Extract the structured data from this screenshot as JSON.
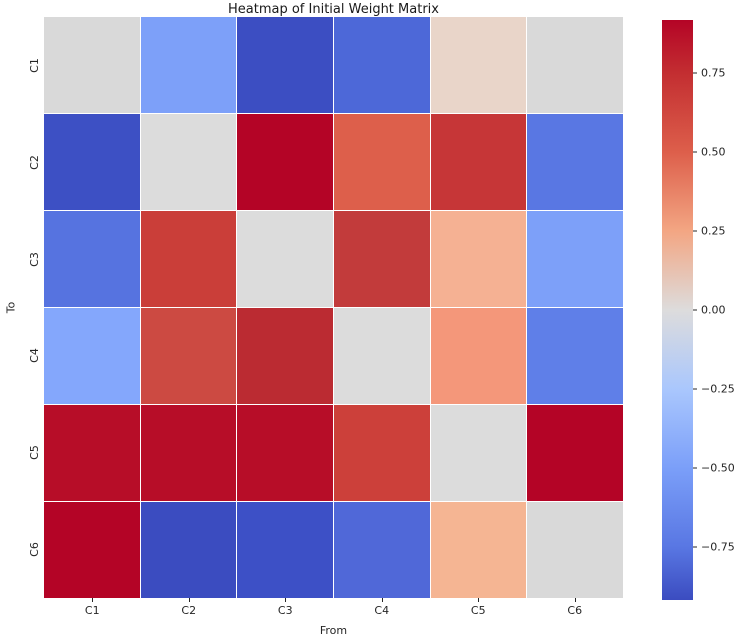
{
  "chart_data": {
    "type": "heatmap",
    "title": "Heatmap of Initial Weight Matrix",
    "xlabel": "From",
    "ylabel": "To",
    "x_categories": [
      "C1",
      "C2",
      "C3",
      "C4",
      "C5",
      "C6"
    ],
    "y_categories": [
      "C1",
      "C2",
      "C3",
      "C4",
      "C5",
      "C6"
    ],
    "colormap": "coolwarm",
    "value_range": [
      -0.92,
      0.92
    ],
    "grid": false,
    "legend_position": "right-colorbar",
    "values": [
      [
        0.0,
        -0.38,
        -0.85,
        -0.68,
        0.1,
        0.02
      ],
      [
        -0.84,
        0.0,
        0.92,
        0.55,
        0.65,
        -0.52
      ],
      [
        -0.6,
        0.62,
        0.0,
        0.68,
        0.3,
        -0.4
      ],
      [
        -0.35,
        0.62,
        0.75,
        0.0,
        0.42,
        -0.5
      ],
      [
        0.88,
        0.88,
        0.88,
        0.65,
        0.0,
        0.92
      ],
      [
        0.92,
        -0.88,
        -0.82,
        -0.62,
        0.3,
        0.02
      ]
    ],
    "cell_colors": [
      [
        "#d9d9d9",
        "#7da0f9",
        "#3c4ec2",
        "#4d68d8",
        "#e9d5c9",
        "#d9d9d9"
      ],
      [
        "#3d50c4",
        "#dcdcdc",
        "#b40426",
        "#dd5f4b",
        "#c63637",
        "#5977e3"
      ],
      [
        "#5673e0",
        "#ca3e39",
        "#dcdcdc",
        "#c23b3b",
        "#f5b193",
        "#7da0f9"
      ],
      [
        "#84a7fc",
        "#cc4a42",
        "#bb2b32",
        "#dcdcdc",
        "#f4977a",
        "#5f7fe8"
      ],
      [
        "#b70d28",
        "#b70d28",
        "#b70d28",
        "#cc403a",
        "#dcdcdc",
        "#b40426"
      ],
      [
        "#b40426",
        "#3b4cc0",
        "#3d50c6",
        "#5068d8",
        "#f5b593",
        "#d9d9d9"
      ]
    ],
    "colorbar": {
      "ticks": [
        {
          "label": "0.75",
          "pos": 9.2
        },
        {
          "label": "0.50",
          "pos": 22.8
        },
        {
          "label": "0.25",
          "pos": 36.4
        },
        {
          "label": "0.00",
          "pos": 50.0
        },
        {
          "label": "−0.25",
          "pos": 63.6
        },
        {
          "label": "−0.50",
          "pos": 77.2
        },
        {
          "label": "−0.75",
          "pos": 90.8
        }
      ],
      "gradient_stops": [
        {
          "color": "#b40426",
          "pos": 0
        },
        {
          "color": "#c32e31",
          "pos": 9.2
        },
        {
          "color": "#dd5f4b",
          "pos": 22.8
        },
        {
          "color": "#f3a683",
          "pos": 36.4
        },
        {
          "color": "#dddcdc",
          "pos": 50
        },
        {
          "color": "#aac7fd",
          "pos": 63.6
        },
        {
          "color": "#7b9ff9",
          "pos": 77.2
        },
        {
          "color": "#5977e3",
          "pos": 90.8
        },
        {
          "color": "#3b4cc0",
          "pos": 100
        }
      ]
    },
    "accent_colors": {
      "max_red": "#b40426",
      "min_blue": "#3b4cc0",
      "zero_gray": "#dcdcdc",
      "text": "#262626"
    }
  }
}
